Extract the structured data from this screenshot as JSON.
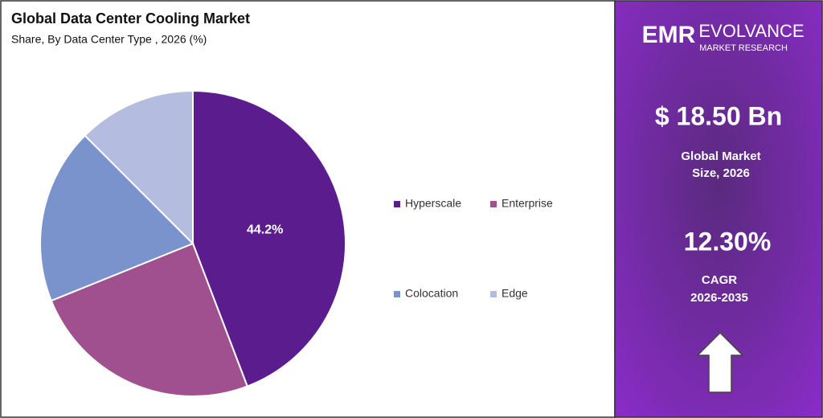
{
  "chart_data": {
    "type": "pie",
    "title": "Global Data Center Cooling Market",
    "subtitle": "Share, By Data Center Type , 2026 (%)",
    "categories": [
      "Hyperscale",
      "Enterprise",
      "Colocation",
      "Edge"
    ],
    "values": [
      44.2,
      24.7,
      18.6,
      12.5
    ],
    "value_labels": [
      "44.2%",
      null,
      null,
      null
    ],
    "colors": [
      "#5b1d8e",
      "#a0508f",
      "#7b93cc",
      "#b4bddf"
    ]
  },
  "panel": {
    "logo_mark": "EMR",
    "logo_name": "EVOLVANCE",
    "logo_sub": "MARKET RESEARCH",
    "market_size": "$ 18.50 Bn",
    "market_size_label": [
      "Global Market",
      "Size, 2026"
    ],
    "cagr": "12.30%",
    "cagr_label": [
      "CAGR",
      "2026-2035"
    ]
  }
}
